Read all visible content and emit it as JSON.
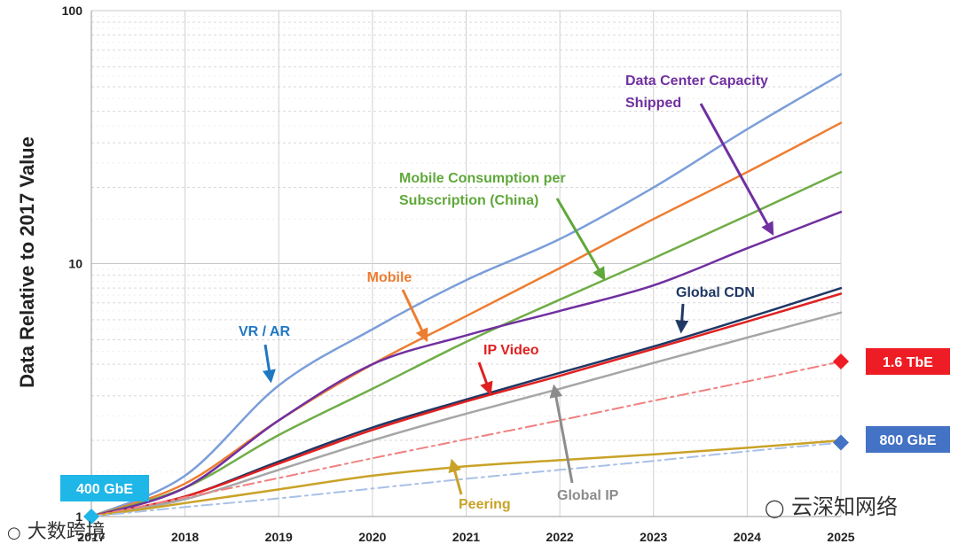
{
  "chart_data": {
    "type": "line",
    "yscale": "log",
    "ylabel": "Data Relative to 2017 Value",
    "xlabel": "",
    "x": [
      2017,
      2018,
      2019,
      2020,
      2021,
      2022,
      2023,
      2024,
      2025
    ],
    "x_tick_labels": [
      "2017",
      "2018",
      "2019",
      "2020",
      "2021",
      "2022",
      "2023",
      "2024",
      "2025"
    ],
    "ylim": [
      1,
      100
    ],
    "y_tick_labels": [
      "1",
      "10",
      "100"
    ],
    "grid": true,
    "series": [
      {
        "name": "VR / AR",
        "color": "#7b9ed9",
        "style": "solid",
        "values": [
          1.0,
          1.45,
          3.3,
          5.5,
          8.6,
          12.5,
          20,
          34,
          56
        ]
      },
      {
        "name": "Mobile",
        "color": "#ed7d31",
        "style": "solid",
        "values": [
          1.0,
          1.35,
          2.4,
          4.0,
          6.2,
          9.6,
          15,
          23,
          36
        ]
      },
      {
        "name": "Mobile Consumption per Subscription (China)",
        "color": "#70ad47",
        "style": "solid",
        "values": [
          1.0,
          1.3,
          2.1,
          3.2,
          4.9,
          7.2,
          10.5,
          15.5,
          23
        ]
      },
      {
        "name": "Data Center Capacity Shipped",
        "color": "#7030a0",
        "style": "solid",
        "values": [
          1.0,
          1.3,
          2.4,
          4.0,
          5.2,
          6.5,
          8.2,
          11.5,
          16
        ]
      },
      {
        "name": "Global CDN",
        "color": "#1f3864",
        "style": "solid",
        "values": [
          1.0,
          1.2,
          1.65,
          2.25,
          2.9,
          3.7,
          4.7,
          6.1,
          8.0
        ]
      },
      {
        "name": "IP Video",
        "color": "#e02020",
        "style": "solid",
        "values": [
          1.0,
          1.2,
          1.62,
          2.2,
          2.85,
          3.6,
          4.6,
          5.9,
          7.6
        ]
      },
      {
        "name": "Global IP",
        "color": "#a6a6a6",
        "style": "solid",
        "values": [
          1.0,
          1.17,
          1.53,
          2.0,
          2.55,
          3.2,
          4.05,
          5.1,
          6.4
        ]
      },
      {
        "name": "1.6 TbE",
        "color": "#f08080",
        "style": "dashdot",
        "values": [
          1.0,
          1.19,
          1.42,
          1.7,
          2.02,
          2.4,
          2.87,
          3.42,
          4.1
        ]
      },
      {
        "name": "Peering",
        "color": "#c9a227",
        "style": "solid",
        "values": [
          1.0,
          1.13,
          1.28,
          1.45,
          1.58,
          1.67,
          1.76,
          1.87,
          2.0
        ]
      },
      {
        "name": "800 GbE",
        "color": "#a9c0e8",
        "style": "dashdot",
        "values": [
          1.0,
          1.09,
          1.18,
          1.29,
          1.41,
          1.53,
          1.66,
          1.81,
          1.96
        ]
      }
    ],
    "annotations": [
      {
        "id": "vr-ar",
        "lines": [
          "VR / AR"
        ],
        "color": "#1f77c4"
      },
      {
        "id": "mobile",
        "lines": [
          "Mobile"
        ],
        "color": "#ed7d31"
      },
      {
        "id": "mobile-china",
        "lines": [
          "Mobile Consumption per",
          "Subscription (China)"
        ],
        "color": "#5fa83a"
      },
      {
        "id": "dc-capacity",
        "lines": [
          "Data Center Capacity",
          "Shipped"
        ],
        "color": "#7030a0"
      },
      {
        "id": "global-cdn",
        "lines": [
          "Global CDN"
        ],
        "color": "#1f3864"
      },
      {
        "id": "ip-video",
        "lines": [
          "IP Video"
        ],
        "color": "#e02020"
      },
      {
        "id": "global-ip",
        "lines": [
          "Global IP"
        ],
        "color": "#8c8c8c"
      },
      {
        "id": "peering",
        "lines": [
          "Peering"
        ],
        "color": "#c9a227"
      }
    ],
    "badges": [
      {
        "id": "badge-400gbe",
        "text": "400 GbE",
        "bg": "#1fb6e8",
        "fg": "#ffffff",
        "at_year": 2017,
        "at_value": 1
      },
      {
        "id": "badge-1-6tbe",
        "text": "1.6 TbE",
        "bg": "#ee1c24",
        "fg": "#ffffff",
        "at_year": 2025,
        "at_value": 4.1
      },
      {
        "id": "badge-800gbe",
        "text": "800 GbE",
        "bg": "#4472c4",
        "fg": "#ffffff",
        "at_year": 2025,
        "at_value": 1.96
      }
    ]
  },
  "watermarks": {
    "left": "大数跨境",
    "right": "云深知网络"
  }
}
